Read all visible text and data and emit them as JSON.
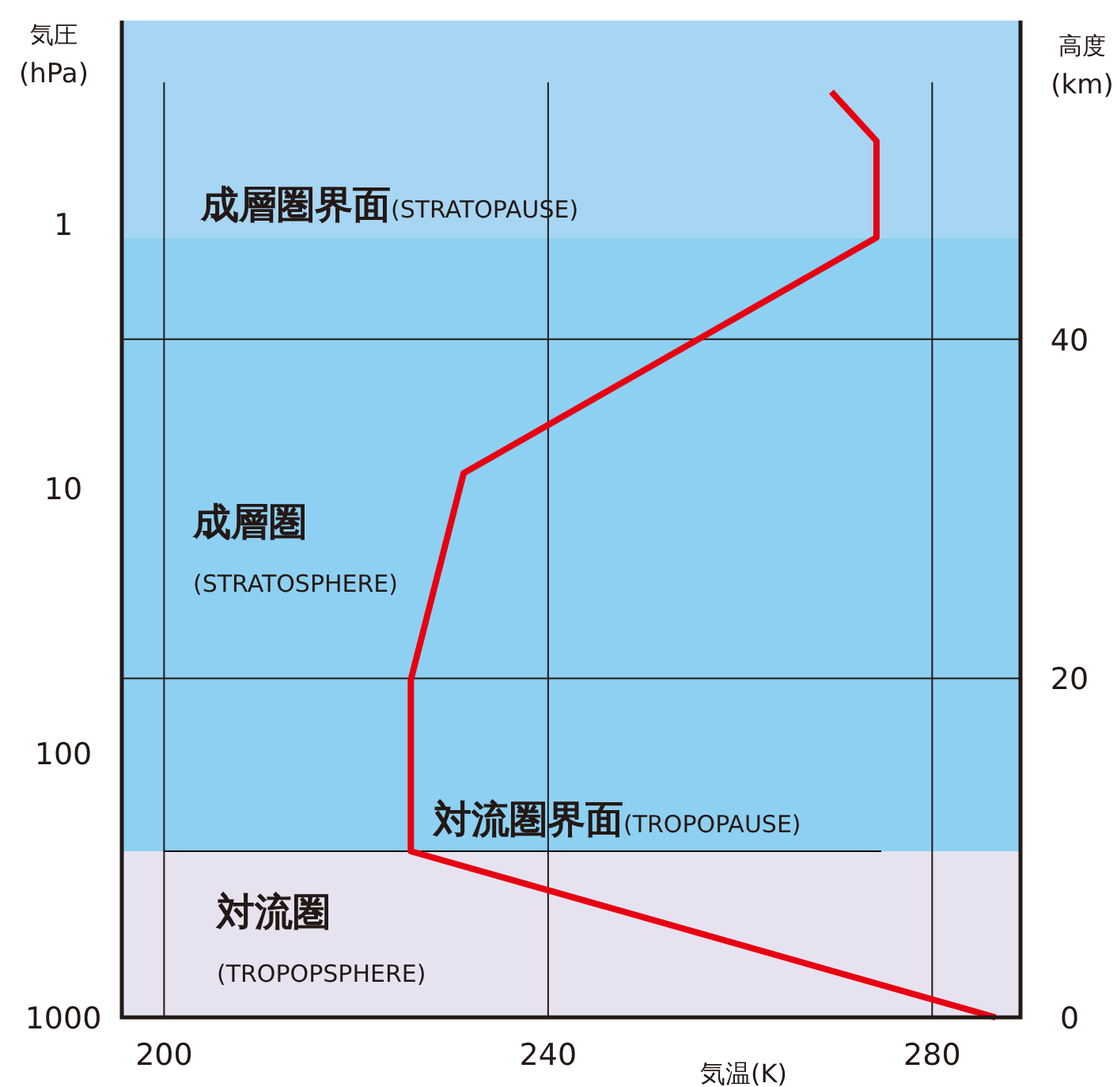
{
  "chart_data": {
    "type": "line",
    "xlabel": "気温(K)",
    "ylabel": "気圧(hPa)",
    "y2label": "高度(km)",
    "xlim": [
      195.6,
      289.2
    ],
    "xticks": [
      200,
      240,
      280
    ],
    "ylim": [
      1000,
      0.17
    ],
    "yticks": [
      1,
      10,
      100,
      1000
    ],
    "log": "y",
    "y2lim": [
      0,
      58.8
    ],
    "y2ticks": [
      0,
      20,
      40
    ],
    "grid": true,
    "series": [
      {
        "color": "#e60012",
        "axis": "y2",
        "x": [
          286.6,
          225.7,
          225.7,
          231.2,
          274.2,
          274.2,
          269.5
        ],
        "values": [
          0,
          9.8,
          19.9,
          32.1,
          46.0,
          51.7,
          54.6
        ]
      }
    ],
    "bands": [
      {
        "axis": "y2",
        "from": 0,
        "to": 9.8,
        "color": "#e6e2f0",
        "label": "対流圏(TROPOPSPHERE)"
      },
      {
        "axis": "y2",
        "from": 9.8,
        "to": 46.0,
        "color": "#8dd0f2",
        "label": "成層圏(STRATOSPHERE)"
      },
      {
        "axis": "y2",
        "from": 46.0,
        "to": 58.8,
        "color": "#a6d6f3",
        "label": "成層圏界面(STRATOPAUSE)"
      }
    ],
    "ref_lines": [
      {
        "axis": "y2",
        "value": 9.8,
        "label": "対流圏界面(TROPOPAUSE)",
        "color": "#000000"
      }
    ]
  }
}
